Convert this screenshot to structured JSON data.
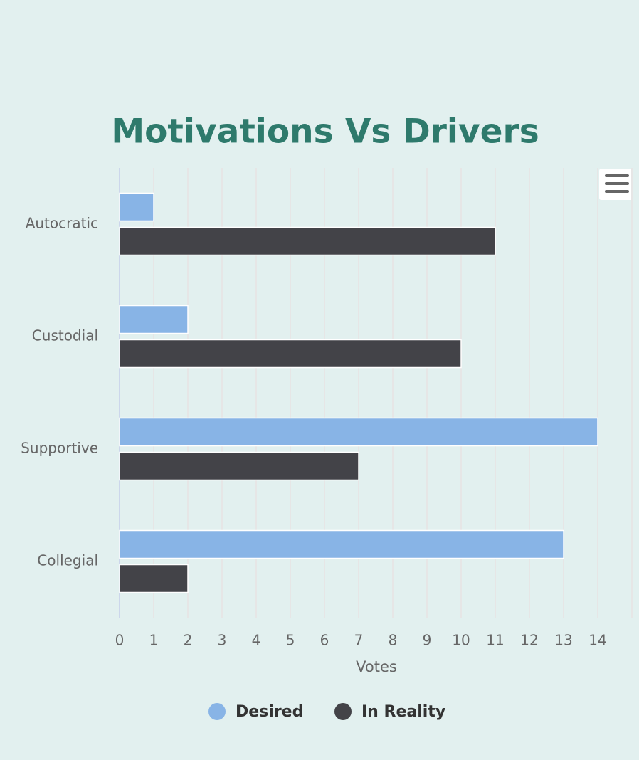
{
  "chart_data": {
    "type": "bar",
    "orientation": "horizontal",
    "title": "Motivations Vs Drivers",
    "categories": [
      "Autocratic",
      "Custodial",
      "Supportive",
      "Collegial"
    ],
    "series": [
      {
        "name": "Desired",
        "color": "#88b4e6",
        "values": [
          1,
          2,
          14,
          13
        ]
      },
      {
        "name": "In Reality",
        "color": "#434348",
        "values": [
          11,
          10,
          7,
          2
        ]
      }
    ],
    "x_label": "Votes",
    "xlim": [
      0,
      15
    ],
    "xticks": [
      0,
      1,
      2,
      3,
      4,
      5,
      6,
      7,
      8,
      9,
      10,
      11,
      12,
      13,
      14
    ],
    "grid": true
  }
}
